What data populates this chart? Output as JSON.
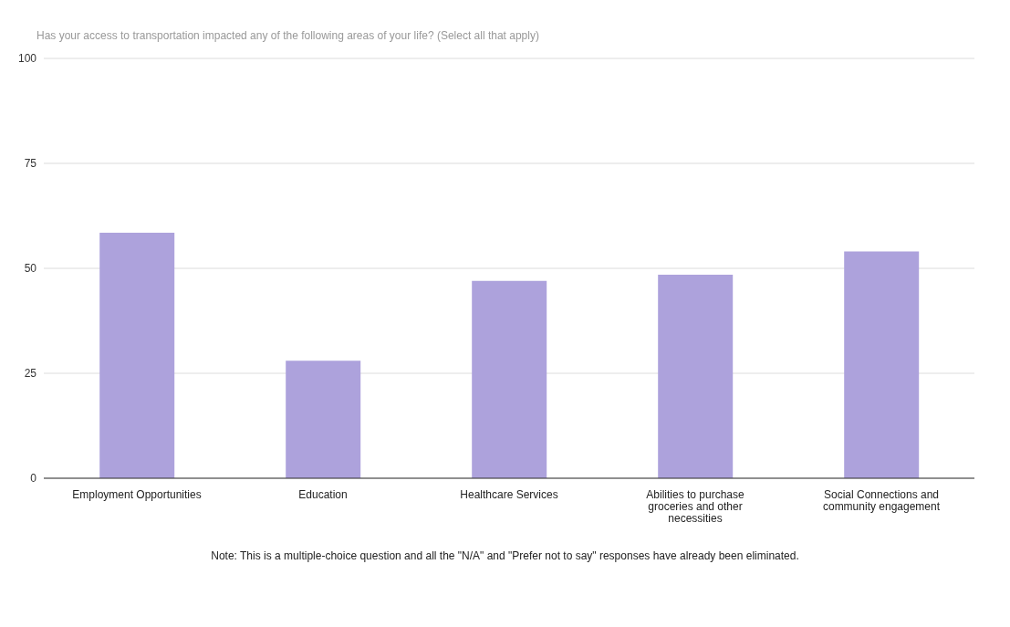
{
  "chart_data": {
    "type": "bar",
    "title": "Has your access to transportation impacted any of the following areas of your life? (Select all that apply)",
    "categories": [
      "Employment Opportunities",
      "Education",
      "Healthcare Services",
      "Abilities to purchase groceries and other necessities",
      "Social Connections and community engagement"
    ],
    "values": [
      58.5,
      28,
      47,
      48.5,
      54
    ],
    "color": "#ada2dc",
    "ylim": [
      0,
      100
    ],
    "yticks": [
      0,
      25,
      50,
      75,
      100
    ],
    "grid": "y",
    "legend": false,
    "annotations": [
      "Note: This is a multiple-choice question and all the \"N/A\" and \"Prefer not to say\" responses have already been eliminated."
    ]
  }
}
